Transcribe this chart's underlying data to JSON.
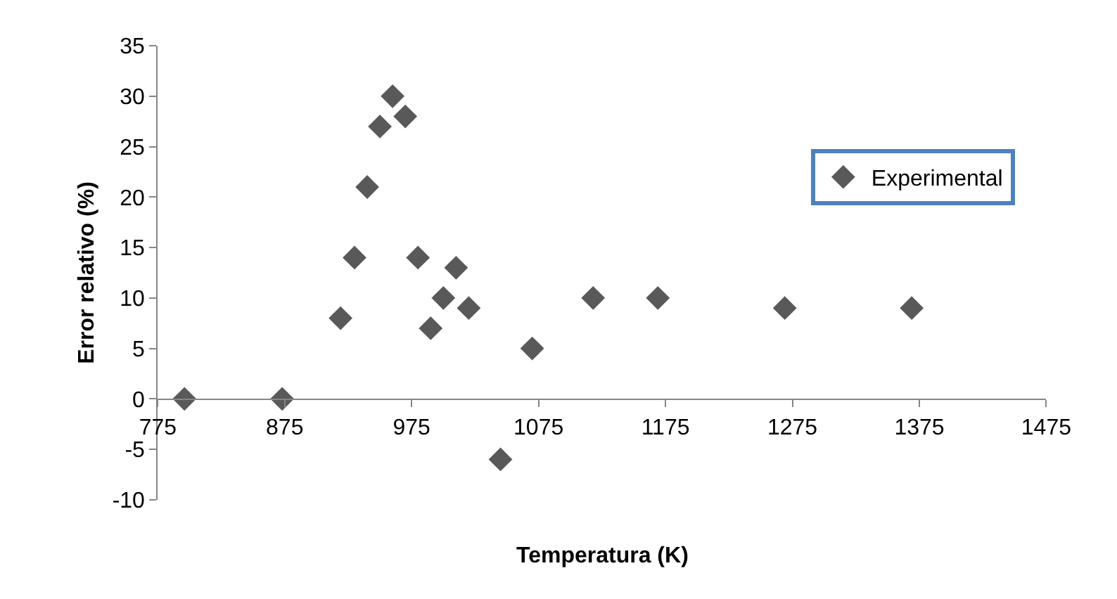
{
  "chart_data": {
    "type": "scatter",
    "xlabel": "Temperatura (K)",
    "ylabel": "Error relativo (%)",
    "xlim": [
      775,
      1475
    ],
    "xticks": [
      775,
      875,
      975,
      1075,
      1175,
      1275,
      1375,
      1475
    ],
    "ylim": [
      -10,
      35
    ],
    "yticks": [
      -10,
      -5,
      0,
      5,
      10,
      15,
      20,
      25,
      30,
      35
    ],
    "legend": "right",
    "marker": "diamond",
    "series": [
      {
        "name": "Experimental",
        "color": "#595959",
        "x": [
          796,
          873,
          919,
          930,
          940,
          950,
          960,
          970,
          980,
          990,
          1000,
          1010,
          1020,
          1045,
          1070,
          1118,
          1169,
          1269,
          1369
        ],
        "values": [
          0,
          0,
          8,
          14,
          21,
          27,
          30,
          28,
          14,
          7,
          10,
          13,
          9,
          -6,
          5,
          10,
          10,
          9,
          9
        ]
      }
    ]
  }
}
